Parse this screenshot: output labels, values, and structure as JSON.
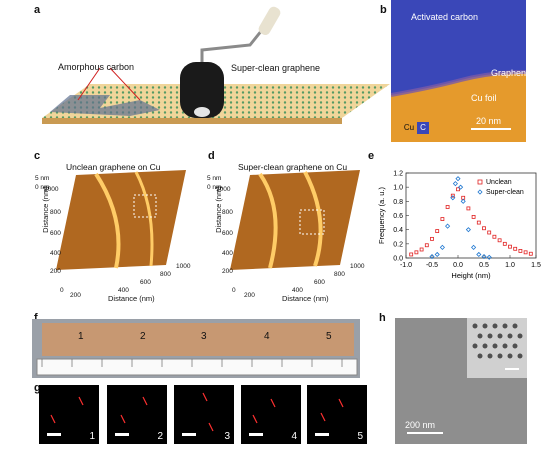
{
  "panels": {
    "a": {
      "letter": "a",
      "amorphous_label": "Amorphous carbon",
      "graphene_label": "Super-clean graphene"
    },
    "b": {
      "letter": "b",
      "activated": "Activated carbon",
      "graphene": "Graphene",
      "cufoil": "Cu foil",
      "legend_cu": "Cu",
      "legend_c": "C",
      "scale": "20 nm",
      "colors": {
        "carbon": "#3a47b8",
        "copper": "#e59a2c"
      }
    },
    "c": {
      "letter": "c",
      "title": "Unclean graphene on Cu",
      "z_top": "5 nm",
      "z_bottom": "0 nm",
      "dist_label": "Distance (nm)",
      "xlabel": "Distance (nm)",
      "ticks_y": [
        "1000",
        "800",
        "600",
        "400",
        "200",
        "0"
      ],
      "ticks_x": [
        "0",
        "200",
        "400",
        "600",
        "800",
        "1000"
      ]
    },
    "d": {
      "letter": "d",
      "title": "Super-clean graphene on Cu",
      "z_top": "5 nm",
      "z_bottom": "0 nm",
      "dist_label": "Distance (nm)",
      "xlabel": "Distance (nm)",
      "ticks_y": [
        "1000",
        "800",
        "600",
        "400",
        "200",
        "0"
      ],
      "ticks_x": [
        "0",
        "200",
        "400",
        "600",
        "800",
        "1000"
      ]
    },
    "e": {
      "letter": "e"
    },
    "f": {
      "letter": "f",
      "labels": [
        "1",
        "2",
        "3",
        "4",
        "5"
      ]
    },
    "g": {
      "letter": "g",
      "labels": [
        "1",
        "2",
        "3",
        "4",
        "5"
      ]
    },
    "h": {
      "letter": "h",
      "scale": "200 nm"
    }
  },
  "chart_data": {
    "type": "scatter",
    "xlabel": "Height (nm)",
    "ylabel": "Frequency (a. u.)",
    "xlim": [
      -1.0,
      1.5
    ],
    "ylim": [
      0,
      1.2
    ],
    "x_ticks": [
      "-1.0",
      "-0.5",
      "0.0",
      "0.5",
      "1.0",
      "1.5"
    ],
    "y_ticks": [
      "0.0",
      "0.2",
      "0.4",
      "0.6",
      "0.8",
      "1.0",
      "1.2"
    ],
    "legend_position": "top-right",
    "series": [
      {
        "name": "Unclean",
        "color": "#e02020",
        "marker": "square",
        "x": [
          -0.9,
          -0.8,
          -0.7,
          -0.6,
          -0.5,
          -0.4,
          -0.3,
          -0.2,
          -0.1,
          0.0,
          0.1,
          0.2,
          0.3,
          0.4,
          0.5,
          0.6,
          0.7,
          0.8,
          0.9,
          1.0,
          1.1,
          1.2,
          1.3,
          1.4
        ],
        "y": [
          0.05,
          0.08,
          0.12,
          0.18,
          0.27,
          0.38,
          0.55,
          0.72,
          0.88,
          0.97,
          0.85,
          0.7,
          0.58,
          0.5,
          0.42,
          0.36,
          0.3,
          0.25,
          0.2,
          0.16,
          0.13,
          0.1,
          0.08,
          0.06
        ]
      },
      {
        "name": "Super-clean",
        "color": "#1f77d0",
        "marker": "diamond",
        "x": [
          -0.5,
          -0.4,
          -0.3,
          -0.2,
          -0.1,
          -0.05,
          0.0,
          0.05,
          0.1,
          0.2,
          0.3,
          0.4,
          0.5,
          0.6
        ],
        "y": [
          0.02,
          0.05,
          0.15,
          0.45,
          0.85,
          1.05,
          1.12,
          1.0,
          0.8,
          0.4,
          0.15,
          0.05,
          0.02,
          0.01
        ]
      }
    ]
  }
}
